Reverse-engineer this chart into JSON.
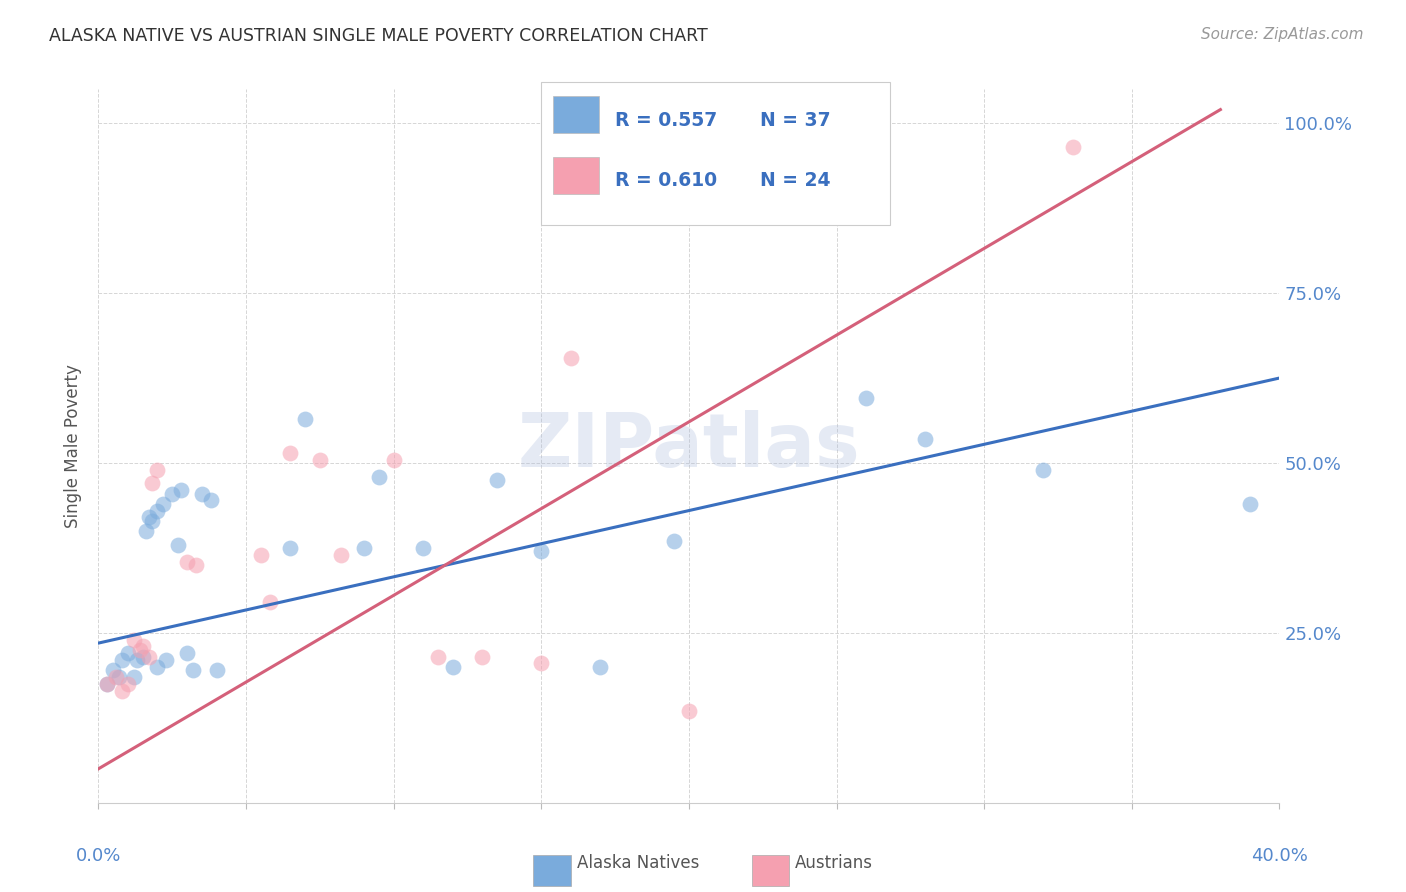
{
  "title": "ALASKA NATIVE VS AUSTRIAN SINGLE MALE POVERTY CORRELATION CHART",
  "source": "Source: ZipAtlas.com",
  "ylabel": "Single Male Poverty",
  "ytick_vals": [
    0.25,
    0.5,
    0.75,
    1.0
  ],
  "ytick_labels": [
    "25.0%",
    "50.0%",
    "75.0%",
    "100.0%"
  ],
  "xlim": [
    0.0,
    0.4
  ],
  "ylim": [
    0.0,
    1.05
  ],
  "legend_blue_R": "R = 0.557",
  "legend_blue_N": "N = 37",
  "legend_pink_R": "R = 0.610",
  "legend_pink_N": "N = 24",
  "watermark": "ZIPatlas",
  "blue_scatter": [
    [
      0.003,
      0.175
    ],
    [
      0.005,
      0.195
    ],
    [
      0.007,
      0.185
    ],
    [
      0.008,
      0.21
    ],
    [
      0.01,
      0.22
    ],
    [
      0.012,
      0.185
    ],
    [
      0.013,
      0.21
    ],
    [
      0.015,
      0.215
    ],
    [
      0.016,
      0.4
    ],
    [
      0.017,
      0.42
    ],
    [
      0.018,
      0.415
    ],
    [
      0.02,
      0.43
    ],
    [
      0.02,
      0.2
    ],
    [
      0.022,
      0.44
    ],
    [
      0.023,
      0.21
    ],
    [
      0.025,
      0.455
    ],
    [
      0.027,
      0.38
    ],
    [
      0.028,
      0.46
    ],
    [
      0.03,
      0.22
    ],
    [
      0.032,
      0.195
    ],
    [
      0.035,
      0.455
    ],
    [
      0.038,
      0.445
    ],
    [
      0.04,
      0.195
    ],
    [
      0.065,
      0.375
    ],
    [
      0.07,
      0.565
    ],
    [
      0.09,
      0.375
    ],
    [
      0.095,
      0.48
    ],
    [
      0.11,
      0.375
    ],
    [
      0.12,
      0.2
    ],
    [
      0.135,
      0.475
    ],
    [
      0.15,
      0.37
    ],
    [
      0.17,
      0.2
    ],
    [
      0.195,
      0.385
    ],
    [
      0.26,
      0.595
    ],
    [
      0.28,
      0.535
    ],
    [
      0.32,
      0.49
    ],
    [
      0.39,
      0.44
    ]
  ],
  "pink_scatter": [
    [
      0.003,
      0.175
    ],
    [
      0.006,
      0.185
    ],
    [
      0.008,
      0.165
    ],
    [
      0.01,
      0.175
    ],
    [
      0.012,
      0.24
    ],
    [
      0.014,
      0.225
    ],
    [
      0.015,
      0.23
    ],
    [
      0.017,
      0.215
    ],
    [
      0.018,
      0.47
    ],
    [
      0.02,
      0.49
    ],
    [
      0.03,
      0.355
    ],
    [
      0.033,
      0.35
    ],
    [
      0.055,
      0.365
    ],
    [
      0.058,
      0.295
    ],
    [
      0.065,
      0.515
    ],
    [
      0.075,
      0.505
    ],
    [
      0.082,
      0.365
    ],
    [
      0.1,
      0.505
    ],
    [
      0.115,
      0.215
    ],
    [
      0.13,
      0.215
    ],
    [
      0.15,
      0.205
    ],
    [
      0.16,
      0.655
    ],
    [
      0.2,
      0.135
    ],
    [
      0.33,
      0.965
    ]
  ],
  "blue_line": {
    "x0": 0.0,
    "y0": 0.235,
    "x1": 0.4,
    "y1": 0.625
  },
  "pink_line": {
    "x0": 0.0,
    "y0": 0.05,
    "x1": 0.38,
    "y1": 1.02
  },
  "blue_color": "#7AABDC",
  "pink_color": "#F5A0B0",
  "blue_line_color": "#3A6FBF",
  "pink_line_color": "#D4607A",
  "bg_color": "#FFFFFF",
  "grid_color": "#CCCCCC",
  "title_color": "#333333",
  "tick_color": "#5588CC",
  "source_color": "#999999"
}
